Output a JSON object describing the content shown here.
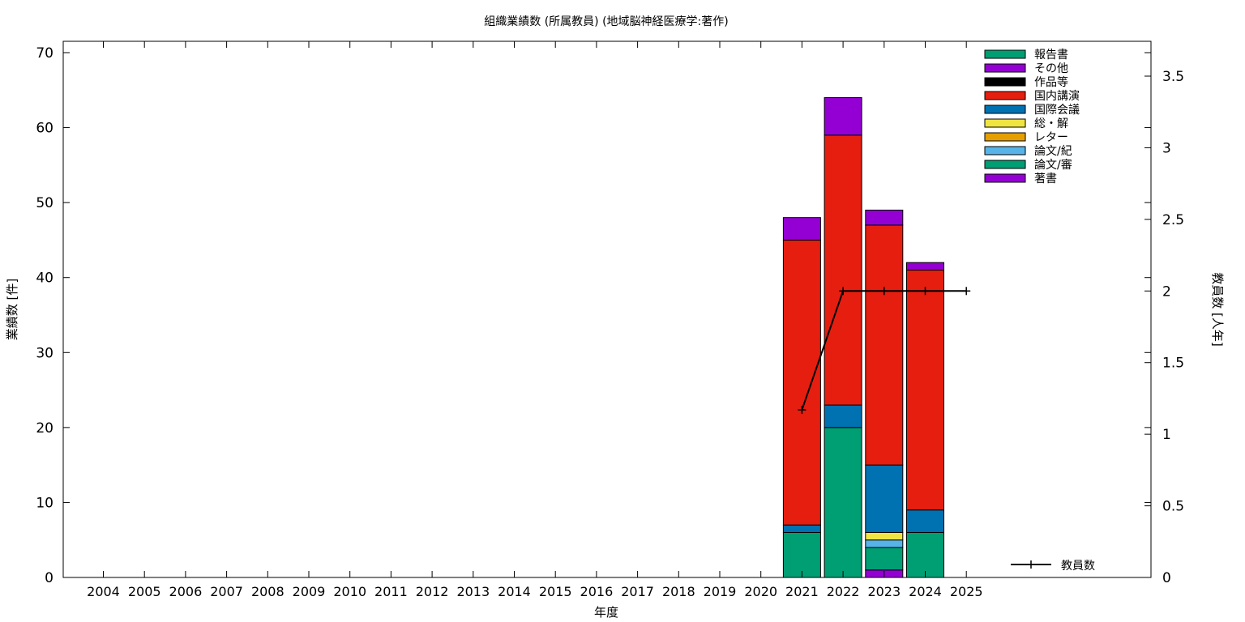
{
  "chart_data": {
    "type": "bar",
    "stacked": true,
    "title": "組織業績数 (所属教員) (地域脳神経医療学:著作)",
    "xlabel": "年度",
    "ylabel": "業績数 [件]",
    "y2label": "教員数 [人年]",
    "ylim": [
      0,
      70
    ],
    "y2lim": [
      0,
      3.5
    ],
    "yticks": [
      "0",
      "10",
      "20",
      "30",
      "40",
      "50",
      "60",
      "70"
    ],
    "y2ticks": [
      "0",
      "0.5",
      "1",
      "1.5",
      "2",
      "2.5",
      "3",
      "3.5"
    ],
    "categories": [
      "2004",
      "2005",
      "2006",
      "2007",
      "2008",
      "2009",
      "2010",
      "2011",
      "2012",
      "2013",
      "2014",
      "2015",
      "2016",
      "2017",
      "2018",
      "2019",
      "2020",
      "2021",
      "2022",
      "2023",
      "2024",
      "2025"
    ],
    "series": [
      {
        "name": "著書",
        "color": "#9400d3",
        "values": [
          0,
          0,
          0,
          0,
          0,
          0,
          0,
          0,
          0,
          0,
          0,
          0,
          0,
          0,
          0,
          0,
          0,
          0,
          0,
          1,
          0,
          0
        ]
      },
      {
        "name": "論文/審",
        "color": "#009e73",
        "values": [
          0,
          0,
          0,
          0,
          0,
          0,
          0,
          0,
          0,
          0,
          0,
          0,
          0,
          0,
          0,
          0,
          0,
          6,
          20,
          3,
          6,
          0
        ]
      },
      {
        "name": "論文/紀",
        "color": "#56b4e9",
        "values": [
          0,
          0,
          0,
          0,
          0,
          0,
          0,
          0,
          0,
          0,
          0,
          0,
          0,
          0,
          0,
          0,
          0,
          0,
          0,
          1,
          0,
          0
        ]
      },
      {
        "name": "レター",
        "color": "#e69f00",
        "values": [
          0,
          0,
          0,
          0,
          0,
          0,
          0,
          0,
          0,
          0,
          0,
          0,
          0,
          0,
          0,
          0,
          0,
          0,
          0,
          0,
          0,
          0
        ]
      },
      {
        "name": "総・解",
        "color": "#f0e442",
        "values": [
          0,
          0,
          0,
          0,
          0,
          0,
          0,
          0,
          0,
          0,
          0,
          0,
          0,
          0,
          0,
          0,
          0,
          0,
          0,
          1,
          0,
          0
        ]
      },
      {
        "name": "国際会議",
        "color": "#0072b2",
        "values": [
          0,
          0,
          0,
          0,
          0,
          0,
          0,
          0,
          0,
          0,
          0,
          0,
          0,
          0,
          0,
          0,
          0,
          1,
          3,
          9,
          3,
          0
        ]
      },
      {
        "name": "国内講演",
        "color": "#e51e10",
        "values": [
          0,
          0,
          0,
          0,
          0,
          0,
          0,
          0,
          0,
          0,
          0,
          0,
          0,
          0,
          0,
          0,
          0,
          38,
          36,
          32,
          32,
          0
        ]
      },
      {
        "name": "作品等",
        "color": "#000000",
        "values": [
          0,
          0,
          0,
          0,
          0,
          0,
          0,
          0,
          0,
          0,
          0,
          0,
          0,
          0,
          0,
          0,
          0,
          0,
          0,
          0,
          0,
          0
        ]
      },
      {
        "name": "その他",
        "color": "#9400d3",
        "values": [
          0,
          0,
          0,
          0,
          0,
          0,
          0,
          0,
          0,
          0,
          0,
          0,
          0,
          0,
          0,
          0,
          0,
          3,
          5,
          2,
          1,
          0
        ]
      },
      {
        "name": "報告書",
        "color": "#009e73",
        "values": [
          0,
          0,
          0,
          0,
          0,
          0,
          0,
          0,
          0,
          0,
          0,
          0,
          0,
          0,
          0,
          0,
          0,
          0,
          0,
          0,
          0,
          0
        ]
      }
    ],
    "line": {
      "name": "教員数",
      "axis": "y2",
      "x": [
        "2021",
        "2022",
        "2023",
        "2024",
        "2025"
      ],
      "values": [
        1.17,
        2,
        2,
        2,
        2
      ]
    },
    "legend_position": "top-right",
    "line_legend_position": "bottom-right",
    "grid": false
  }
}
